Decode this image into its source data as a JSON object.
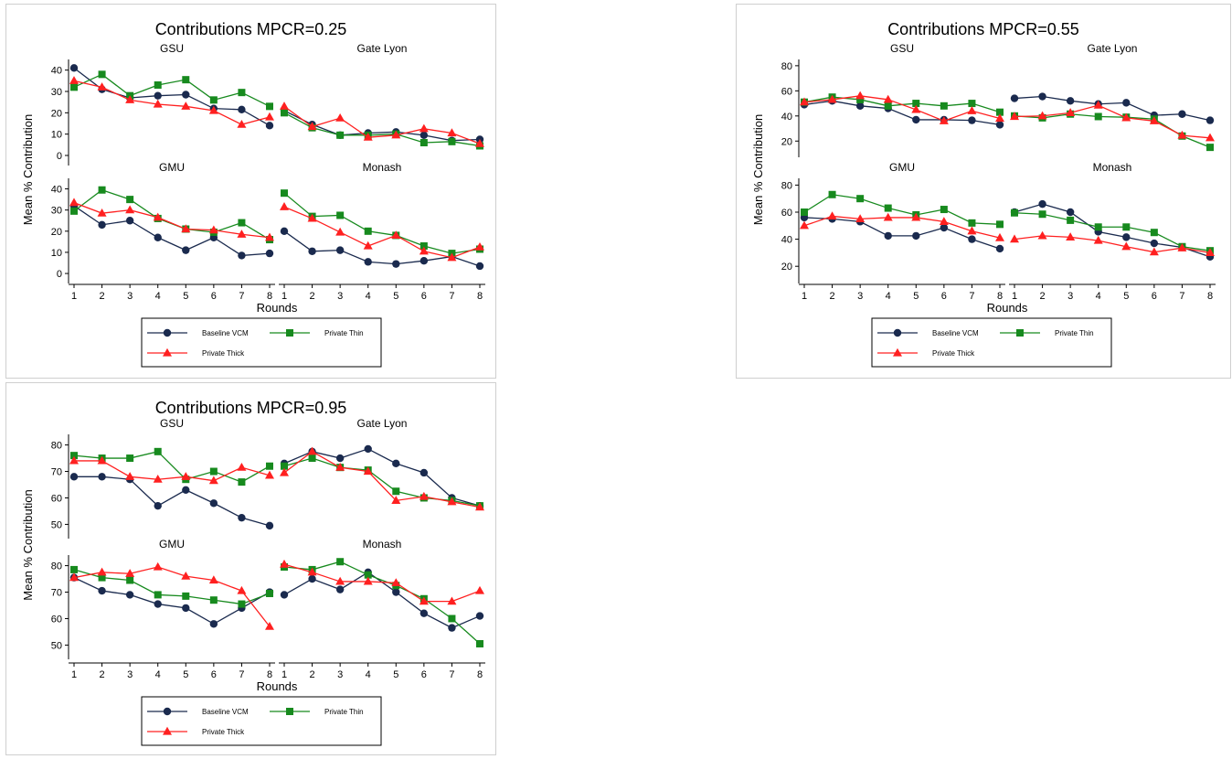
{
  "series_styles": [
    {
      "name": "Baseline VCM",
      "color": "#1a2a4e",
      "marker": "circle"
    },
    {
      "name": "Private Thin",
      "color": "#178a1e",
      "marker": "square"
    },
    {
      "name": "Private Thick",
      "color": "#ff2020",
      "marker": "triangle"
    }
  ],
  "chart_data": [
    {
      "type": "line",
      "title": "Contributions MPCR=0.25",
      "ylabel": "Mean % Contribution",
      "xlabel": "Rounds",
      "x": [
        1,
        2,
        3,
        4,
        5,
        6,
        7,
        8
      ],
      "ylim": [
        -3,
        45
      ],
      "yticks": [
        0,
        10,
        20,
        30,
        40
      ],
      "legend": [
        "Baseline VCM",
        "Private Thin",
        "Private Thick"
      ],
      "subplots": [
        {
          "title": "GSU",
          "series": [
            {
              "name": "Baseline VCM",
              "values": [
                41,
                31,
                27,
                28,
                28.5,
                22,
                21.5,
                14
              ]
            },
            {
              "name": "Private Thin",
              "values": [
                32,
                38,
                28,
                33,
                35.5,
                26,
                29.5,
                23
              ]
            },
            {
              "name": "Private Thick",
              "values": [
                35,
                32,
                26,
                24,
                23,
                21,
                14.5,
                18
              ]
            }
          ]
        },
        {
          "title": "Gate Lyon",
          "series": [
            {
              "name": "Baseline VCM",
              "values": [
                21,
                14.5,
                9.5,
                10.5,
                11,
                9.5,
                7,
                7.5
              ]
            },
            {
              "name": "Private Thin",
              "values": [
                20,
                13,
                9.5,
                9.5,
                10,
                6,
                6.5,
                4.5
              ]
            },
            {
              "name": "Private Thick",
              "values": [
                23,
                13.5,
                17.5,
                8.5,
                9.5,
                12.5,
                10.5,
                5.5
              ]
            }
          ]
        },
        {
          "title": "GMU",
          "series": [
            {
              "name": "Baseline VCM",
              "values": [
                32,
                23,
                25,
                17,
                11,
                17,
                8.5,
                9.5
              ]
            },
            {
              "name": "Private Thin",
              "values": [
                29.5,
                39.5,
                35,
                26,
                21,
                19.5,
                24,
                16
              ]
            },
            {
              "name": "Private Thick",
              "values": [
                33.5,
                28.5,
                30,
                26.5,
                21,
                20.5,
                18.5,
                17
              ]
            }
          ]
        },
        {
          "title": "Monash",
          "series": [
            {
              "name": "Baseline VCM",
              "values": [
                20,
                10.5,
                11,
                5.5,
                4.5,
                6,
                8,
                3.5
              ]
            },
            {
              "name": "Private Thin",
              "values": [
                38,
                27,
                27.5,
                20,
                18,
                13,
                9.5,
                11.5
              ]
            },
            {
              "name": "Private Thick",
              "values": [
                31.5,
                26,
                19.5,
                13,
                18,
                10.5,
                7.5,
                12.5
              ]
            }
          ]
        }
      ]
    },
    {
      "type": "line",
      "title": "Contributions MPCR=0.55",
      "ylabel": "Mean % Contribution",
      "xlabel": "Rounds",
      "x": [
        1,
        2,
        3,
        4,
        5,
        6,
        7,
        8
      ],
      "ylim": [
        10,
        85
      ],
      "yticks": [
        20,
        40,
        60,
        80
      ],
      "legend": [
        "Baseline VCM",
        "Private Thin",
        "Private Thick"
      ],
      "subplots": [
        {
          "title": "GSU",
          "series": [
            {
              "name": "Baseline VCM",
              "values": [
                49,
                52,
                48,
                46,
                37,
                37,
                36.5,
                33
              ]
            },
            {
              "name": "Private Thin",
              "values": [
                51,
                55,
                53,
                48,
                50,
                48,
                50,
                43
              ]
            },
            {
              "name": "Private Thick",
              "values": [
                51,
                53,
                56,
                53,
                45,
                36,
                44,
                38
              ]
            }
          ]
        },
        {
          "title": "Gate Lyon",
          "series": [
            {
              "name": "Baseline VCM",
              "values": [
                54,
                55.5,
                52,
                49.5,
                50.5,
                40.5,
                41.5,
                36.5
              ]
            },
            {
              "name": "Private Thin",
              "values": [
                40,
                38.5,
                41.5,
                39.5,
                39,
                37.5,
                24,
                15
              ]
            },
            {
              "name": "Private Thick",
              "values": [
                39.5,
                40,
                42.5,
                48.5,
                38.5,
                36,
                24.5,
                22.5
              ]
            }
          ]
        },
        {
          "title": "GMU",
          "series": [
            {
              "name": "Baseline VCM",
              "values": [
                56,
                55,
                53,
                42.5,
                42.5,
                48.5,
                40,
                33
              ]
            },
            {
              "name": "Private Thin",
              "values": [
                60,
                73,
                70,
                63,
                58,
                62,
                52,
                51
              ]
            },
            {
              "name": "Private Thick",
              "values": [
                50,
                57,
                55,
                56,
                56,
                53,
                46,
                41
              ]
            }
          ]
        },
        {
          "title": "Monash",
          "series": [
            {
              "name": "Baseline VCM",
              "values": [
                60,
                66,
                60,
                45.5,
                41.5,
                37,
                34,
                27
              ]
            },
            {
              "name": "Private Thin",
              "values": [
                59.5,
                58.5,
                54,
                49,
                49,
                45,
                34.5,
                31.5
              ]
            },
            {
              "name": "Private Thick",
              "values": [
                40,
                42.5,
                41.5,
                39,
                34.5,
                30.5,
                33.5,
                30
              ]
            }
          ]
        }
      ]
    },
    {
      "type": "line",
      "title": "Contributions MPCR=0.95",
      "ylabel": "Mean % Contribution",
      "xlabel": "Rounds",
      "x": [
        1,
        2,
        3,
        4,
        5,
        6,
        7,
        8
      ],
      "ylim": [
        46,
        84
      ],
      "yticks": [
        50,
        60,
        70,
        80
      ],
      "legend": [
        "Baseline VCM",
        "Private Thin",
        "Private Thick"
      ],
      "subplots": [
        {
          "title": "GSU",
          "series": [
            {
              "name": "Baseline VCM",
              "values": [
                68,
                68,
                67,
                57,
                63,
                58,
                52.5,
                49.5
              ]
            },
            {
              "name": "Private Thin",
              "values": [
                76,
                75,
                75,
                77.5,
                67,
                70,
                66,
                72
              ]
            },
            {
              "name": "Private Thick",
              "values": [
                74,
                74,
                68,
                67,
                68,
                66.5,
                71.5,
                68.5
              ]
            }
          ]
        },
        {
          "title": "Gate Lyon",
          "series": [
            {
              "name": "Baseline VCM",
              "values": [
                73,
                77.5,
                75,
                78.5,
                73,
                69.5,
                60,
                57
              ]
            },
            {
              "name": "Private Thin",
              "values": [
                72,
                75,
                71.5,
                70.5,
                62.5,
                60,
                59,
                57
              ]
            },
            {
              "name": "Private Thick",
              "values": [
                69.5,
                77.5,
                71.5,
                70,
                59,
                60.5,
                58.5,
                56.5
              ]
            }
          ]
        },
        {
          "title": "GMU",
          "series": [
            {
              "name": "Baseline VCM",
              "values": [
                75.5,
                70.5,
                69,
                65.5,
                64,
                58,
                64,
                70
              ]
            },
            {
              "name": "Private Thin",
              "values": [
                78.5,
                75.5,
                74.5,
                69,
                68.5,
                67,
                65.5,
                69.5
              ]
            },
            {
              "name": "Private Thick",
              "values": [
                75.5,
                77.5,
                77,
                79.5,
                76,
                74.5,
                70.5,
                57
              ]
            }
          ]
        },
        {
          "title": "Monash",
          "series": [
            {
              "name": "Baseline VCM",
              "values": [
                69,
                75,
                71,
                77.5,
                70,
                62,
                56.5,
                61
              ]
            },
            {
              "name": "Private Thin",
              "values": [
                79.5,
                78.5,
                81.5,
                76.5,
                72.5,
                67.5,
                60,
                50.5
              ]
            },
            {
              "name": "Private Thick",
              "values": [
                80.5,
                77.5,
                74,
                74,
                73.5,
                66.5,
                66.5,
                70.5
              ]
            }
          ]
        }
      ]
    }
  ]
}
